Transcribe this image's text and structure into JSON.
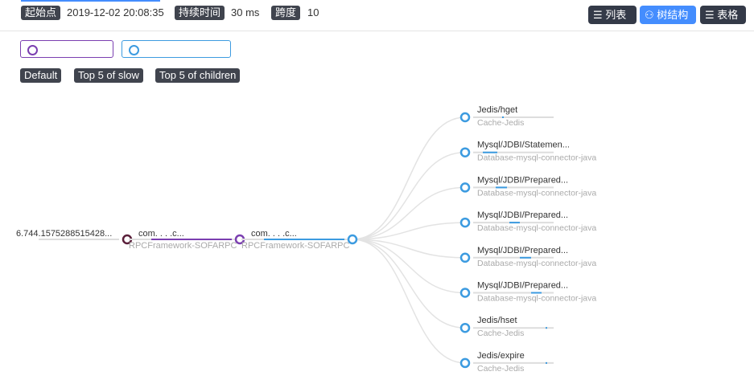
{
  "header": {
    "start_label": "起始点",
    "start_value": "2019-12-02 20:08:35",
    "duration_label": "持续时间",
    "duration_value": "30 ms",
    "span_label": "跨度",
    "span_value": "10"
  },
  "view_buttons": [
    {
      "label": "列表",
      "icon": "list-icon"
    },
    {
      "label": "树结构",
      "icon": "tree-icon",
      "active": true
    },
    {
      "label": "表格",
      "icon": "table-icon"
    }
  ],
  "services": [
    {
      "color": "#7b3fb0"
    },
    {
      "color": "#3c9be0"
    }
  ],
  "filters": [
    "Default",
    "Top 5 of slow",
    "Top 5 of children"
  ],
  "tree": {
    "chain": [
      {
        "label": "6.744.1575288515428...",
        "sub": "",
        "color": "#5a1f3a"
      },
      {
        "label": "com.        .  .        .c...",
        "sub": "RPCFramework-SOFARPC",
        "color": "#7b3fb0"
      },
      {
        "label": "com.        .  .        .c...",
        "sub": "RPCFramework-SOFARPC",
        "color": "#3c9be0"
      }
    ],
    "children": [
      {
        "label": "Jedis/hget",
        "sub": "Cache-Jedis",
        "bar": [
          0.36,
          0.38
        ]
      },
      {
        "label": "Mysql/JDBI/Statemen...",
        "sub": "Database-mysql-connector-java",
        "bar": [
          0.12,
          0.3
        ]
      },
      {
        "label": "Mysql/JDBI/Prepared...",
        "sub": "Database-mysql-connector-java",
        "bar": [
          0.28,
          0.42
        ]
      },
      {
        "label": "Mysql/JDBI/Prepared...",
        "sub": "Database-mysql-connector-java",
        "bar": [
          0.45,
          0.58
        ]
      },
      {
        "label": "Mysql/JDBI/Prepared...",
        "sub": "Database-mysql-connector-java",
        "bar": [
          0.58,
          0.72
        ]
      },
      {
        "label": "Mysql/JDBI/Prepared...",
        "sub": "Database-mysql-connector-java",
        "bar": [
          0.72,
          0.85
        ]
      },
      {
        "label": "Jedis/hset",
        "sub": "Cache-Jedis",
        "bar": [
          0.9,
          0.92
        ]
      },
      {
        "label": "Jedis/expire",
        "sub": "Cache-Jedis",
        "bar": [
          0.9,
          0.92
        ]
      }
    ],
    "child_color": "#3c9be0"
  }
}
